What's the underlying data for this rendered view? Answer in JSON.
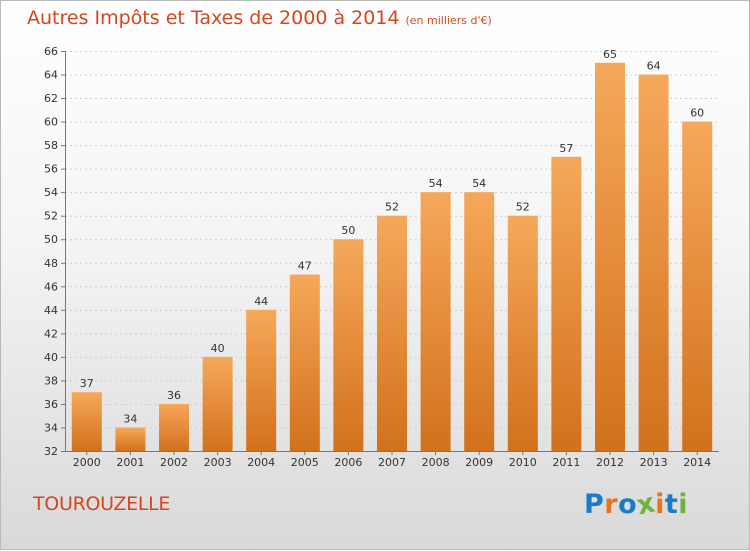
{
  "header": {
    "title": "Autres Impôts et Taxes de 2000 à 2014",
    "unit": "(en milliers d'€)"
  },
  "footer": {
    "place": "TOUROUZELLE",
    "brand": "Proxiti",
    "brand_letters": [
      {
        "char": "P",
        "color": "#1a7bc8"
      },
      {
        "char": "r",
        "color": "#e8741e"
      },
      {
        "char": "o",
        "color": "#1a7bc8"
      },
      {
        "char": "x",
        "color": "#6cb33e"
      },
      {
        "char": "i",
        "color": "#e8741e"
      },
      {
        "char": "t",
        "color": "#1a7bc8"
      },
      {
        "char": "i",
        "color": "#6cb33e"
      }
    ]
  },
  "colors": {
    "accent": "#d4471d",
    "bar_light": "#f6a85a",
    "bar_dark": "#d2711c"
  },
  "chart_data": {
    "type": "bar",
    "title": "Autres Impôts et Taxes de 2000 à 2014",
    "unit": "(en milliers d'€)",
    "xlabel": "",
    "ylabel": "",
    "categories": [
      "2000",
      "2001",
      "2002",
      "2003",
      "2004",
      "2005",
      "2006",
      "2007",
      "2008",
      "2009",
      "2010",
      "2011",
      "2012",
      "2013",
      "2014"
    ],
    "values": [
      37,
      34,
      36,
      40,
      44,
      47,
      50,
      52,
      54,
      54,
      52,
      57,
      65,
      64,
      60
    ],
    "ylim": [
      32,
      66
    ],
    "yticks": [
      32,
      34,
      36,
      38,
      40,
      42,
      44,
      46,
      48,
      50,
      52,
      54,
      56,
      58,
      60,
      62,
      64,
      66
    ],
    "grid": "y"
  }
}
